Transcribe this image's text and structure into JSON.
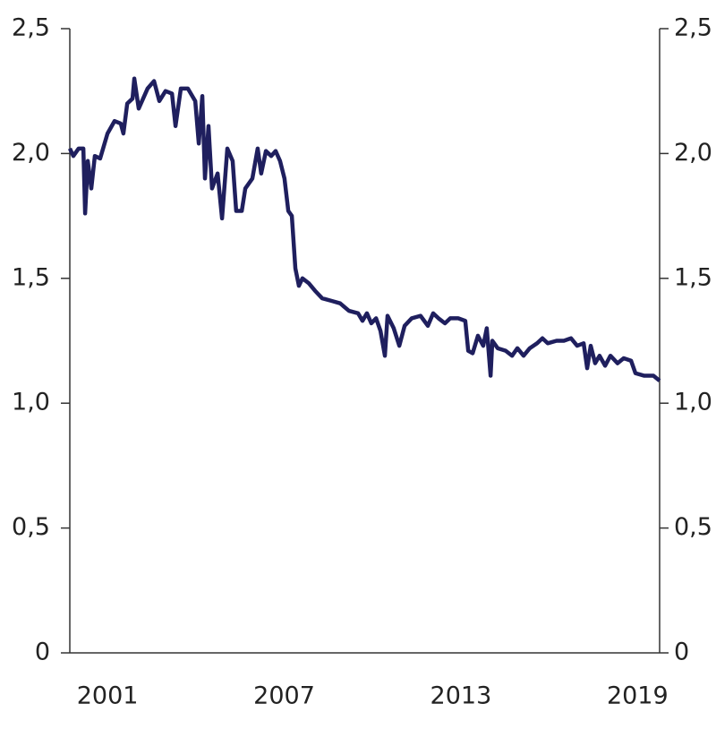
{
  "chart_data": {
    "type": "line",
    "x": [
      1999.72,
      1999.84,
      2000.02,
      2000.18,
      2000.24,
      2000.33,
      2000.45,
      2000.57,
      2000.75,
      2001.0,
      2001.24,
      2001.45,
      2001.54,
      2001.67,
      2001.85,
      2001.91,
      2002.06,
      2002.36,
      2002.58,
      2002.76,
      2002.97,
      2003.19,
      2003.31,
      2003.49,
      2003.73,
      2003.98,
      2004.1,
      2004.22,
      2004.31,
      2004.43,
      2004.55,
      2004.74,
      2004.89,
      2005.07,
      2005.25,
      2005.37,
      2005.56,
      2005.68,
      2005.92,
      2006.1,
      2006.22,
      2006.38,
      2006.56,
      2006.71,
      2006.86,
      2007.01,
      2007.14,
      2007.26,
      2007.38,
      2007.5,
      2007.62,
      2007.84,
      2008.05,
      2008.29,
      2008.6,
      2008.9,
      2009.2,
      2009.51,
      2009.66,
      2009.81,
      2009.96,
      2010.12,
      2010.27,
      2010.42,
      2010.51,
      2010.72,
      2010.91,
      2011.09,
      2011.33,
      2011.63,
      2011.88,
      2012.06,
      2012.24,
      2012.46,
      2012.64,
      2012.91,
      2013.15,
      2013.25,
      2013.4,
      2013.58,
      2013.76,
      2013.88,
      2014.01,
      2014.07,
      2014.25,
      2014.52,
      2014.74,
      2014.92,
      2015.13,
      2015.34,
      2015.59,
      2015.77,
      2015.95,
      2016.25,
      2016.5,
      2016.74,
      2016.95,
      2017.17,
      2017.29,
      2017.41,
      2017.56,
      2017.71,
      2017.9,
      2018.08,
      2018.32,
      2018.53,
      2018.78,
      2018.93,
      2019.23,
      2019.54,
      2019.75
    ],
    "series": [
      {
        "color": "#1f1f5e",
        "values": [
          2.02,
          1.99,
          2.02,
          2.02,
          1.76,
          1.97,
          1.86,
          1.99,
          1.98,
          2.08,
          2.13,
          2.12,
          2.08,
          2.2,
          2.22,
          2.3,
          2.18,
          2.26,
          2.29,
          2.21,
          2.25,
          2.24,
          2.11,
          2.26,
          2.26,
          2.21,
          2.04,
          2.23,
          1.9,
          2.11,
          1.86,
          1.92,
          1.74,
          2.02,
          1.97,
          1.77,
          1.77,
          1.86,
          1.9,
          2.02,
          1.92,
          2.01,
          1.99,
          2.01,
          1.97,
          1.9,
          1.77,
          1.75,
          1.54,
          1.47,
          1.5,
          1.48,
          1.45,
          1.42,
          1.41,
          1.4,
          1.37,
          1.36,
          1.33,
          1.36,
          1.32,
          1.34,
          1.29,
          1.19,
          1.35,
          1.3,
          1.23,
          1.31,
          1.34,
          1.35,
          1.31,
          1.36,
          1.34,
          1.32,
          1.34,
          1.34,
          1.33,
          1.21,
          1.2,
          1.27,
          1.23,
          1.3,
          1.11,
          1.25,
          1.22,
          1.21,
          1.19,
          1.22,
          1.19,
          1.22,
          1.24,
          1.26,
          1.24,
          1.25,
          1.25,
          1.26,
          1.23,
          1.24,
          1.14,
          1.23,
          1.16,
          1.19,
          1.15,
          1.19,
          1.16,
          1.18,
          1.17,
          1.12,
          1.11,
          1.11,
          1.09
        ]
      }
    ],
    "xlim": [
      1999.72,
      2019.75
    ],
    "xticks": [
      2001,
      2007,
      2013,
      2019
    ],
    "ylim": [
      0,
      2.5
    ],
    "yticks": [
      0,
      {
        "value": 0.5,
        "label": "0,5"
      },
      {
        "value": 1,
        "label": "1,0"
      },
      {
        "value": 1.5,
        "label": "1,5"
      },
      {
        "value": 2,
        "label": "2,0"
      },
      {
        "value": 2.5,
        "label": "2,5"
      }
    ],
    "y2lim": [
      0,
      2.5
    ],
    "y2ticks": [
      0,
      {
        "value": 0.5,
        "label": "0,5"
      },
      {
        "value": 1,
        "label": "1,0"
      },
      {
        "value": 1.5,
        "label": "1,5"
      },
      {
        "value": 2,
        "label": "2,0"
      },
      {
        "value": 2.5,
        "label": "2,5"
      }
    ]
  }
}
